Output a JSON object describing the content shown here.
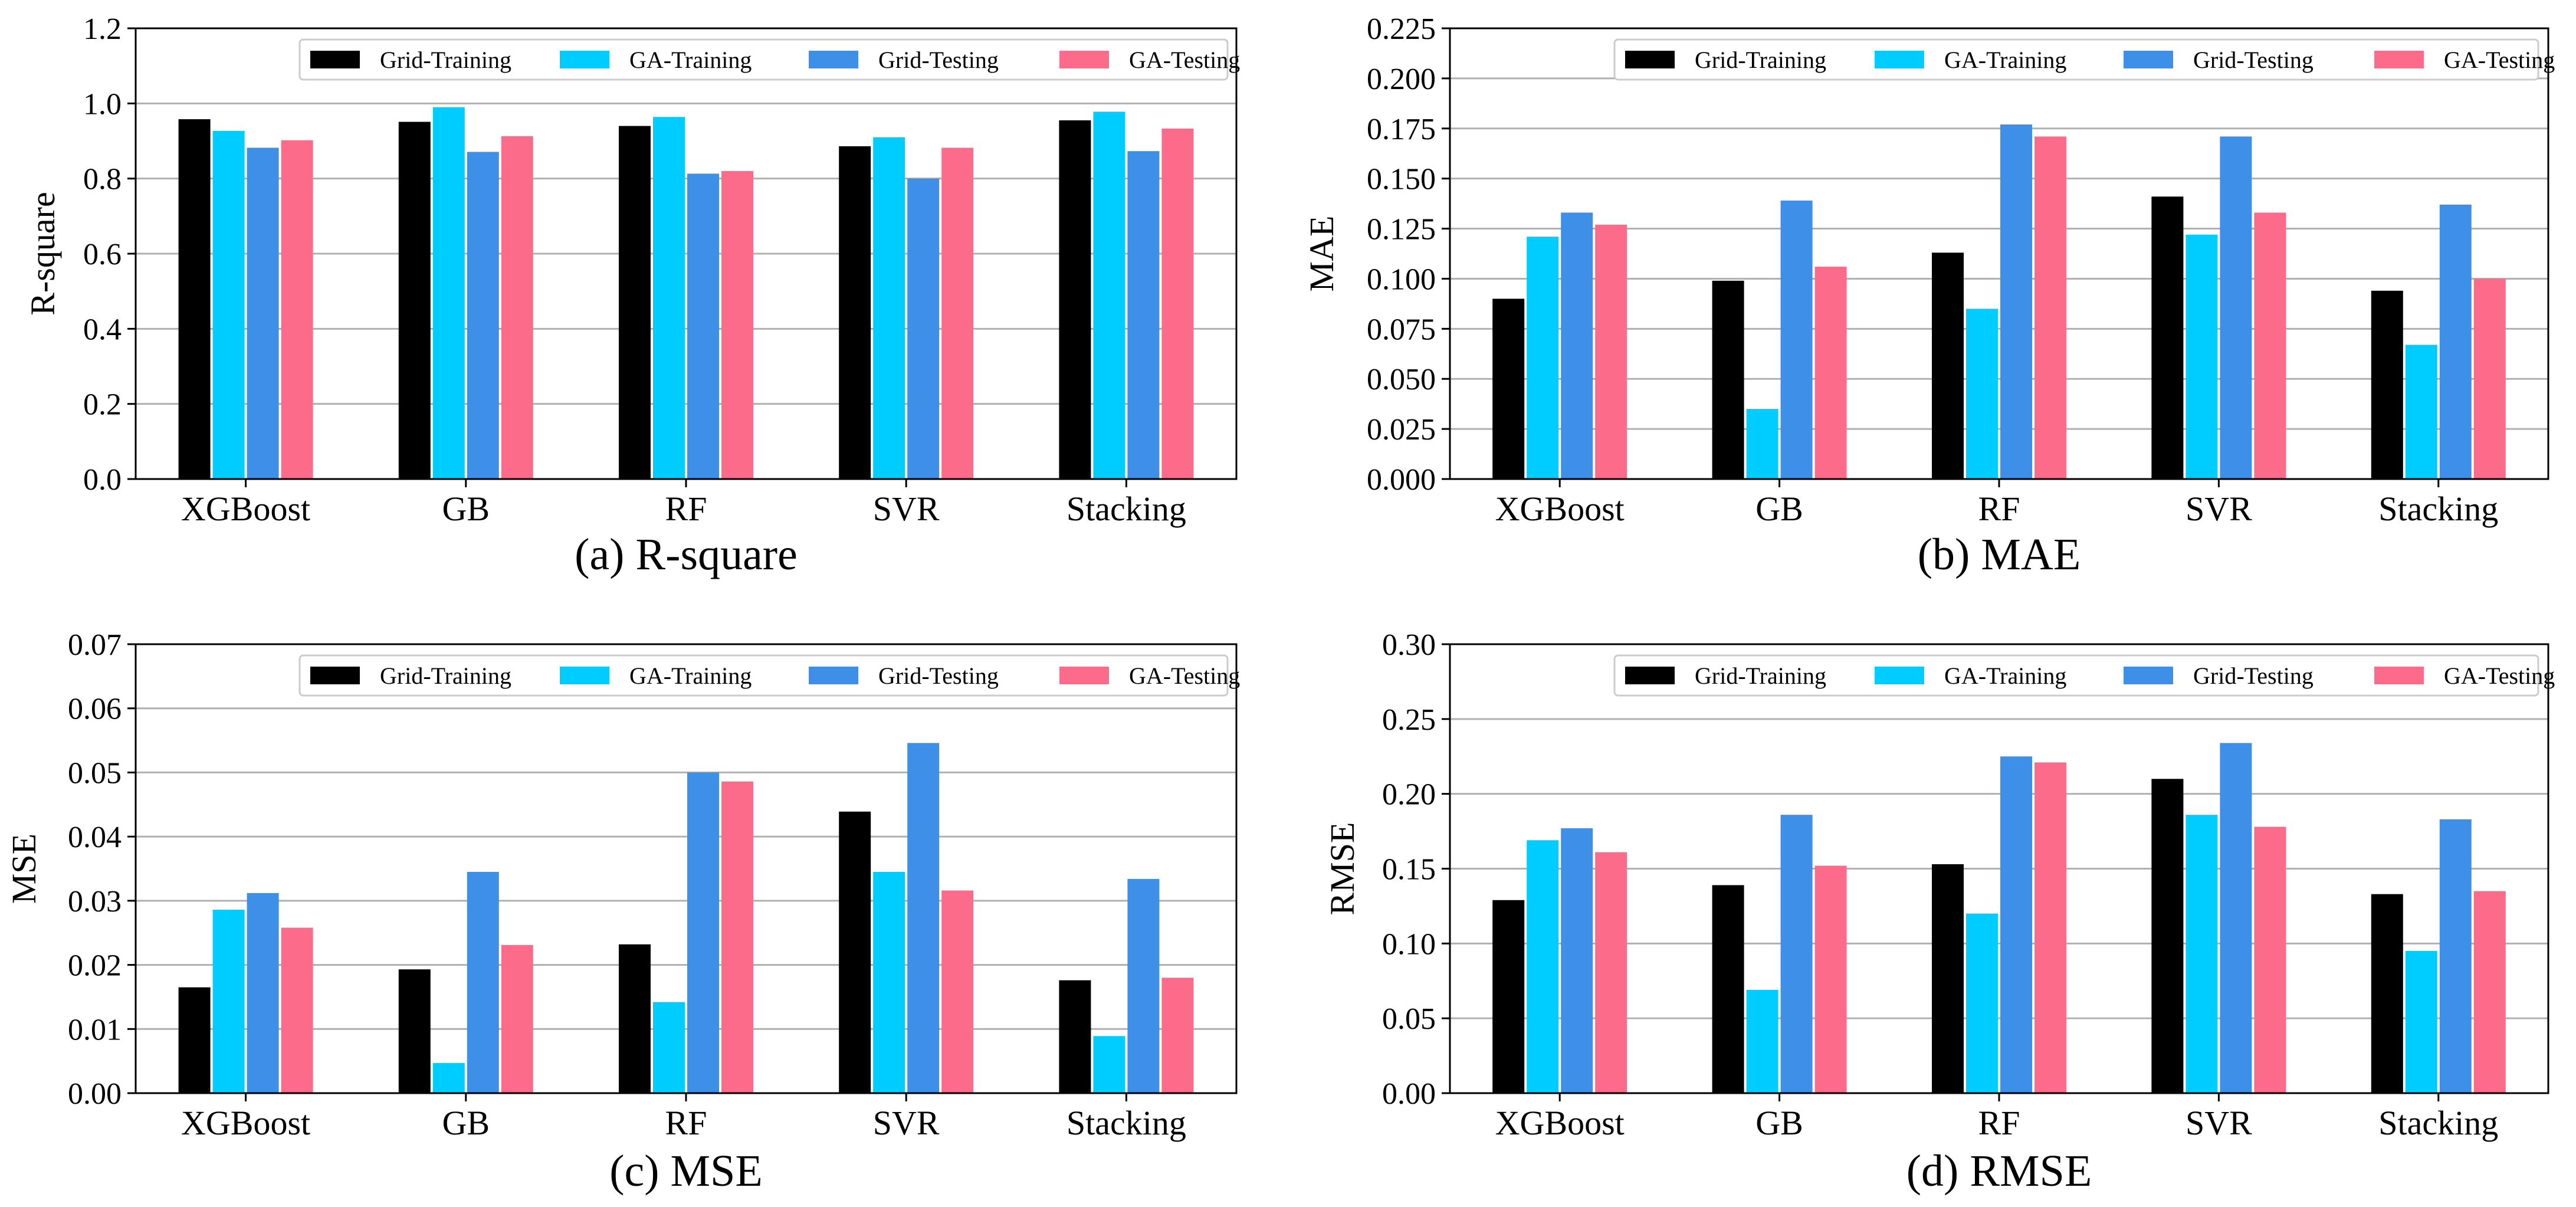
{
  "figure": {
    "legend": [
      "Grid-Training",
      "GA-Training",
      "Grid-Testing",
      "GA-Testing"
    ],
    "colors": [
      "#000000",
      "#00cdff",
      "#3e8fe8",
      "#fd6b8a"
    ]
  },
  "chart_data": [
    {
      "type": "bar",
      "title": "(a) R-square",
      "ylabel": "R-square",
      "xlabel": "",
      "ylim": [
        0,
        1.2
      ],
      "yticks": [
        "0.0",
        "0.2",
        "0.4",
        "0.6",
        "0.8",
        "1.0",
        "1.2"
      ],
      "grid": true,
      "legend_position": "top-right",
      "categories": [
        "XGBoost",
        "GB",
        "RF",
        "SVR",
        "Stacking"
      ],
      "series": [
        {
          "name": "Grid-Training",
          "values": [
            0.958,
            0.951,
            0.94,
            0.886,
            0.955
          ]
        },
        {
          "name": "GA-Training",
          "values": [
            0.927,
            0.99,
            0.964,
            0.91,
            0.978
          ]
        },
        {
          "name": "Grid-Testing",
          "values": [
            0.882,
            0.871,
            0.813,
            0.8,
            0.873
          ]
        },
        {
          "name": "GA-Testing",
          "values": [
            0.902,
            0.913,
            0.82,
            0.882,
            0.933
          ]
        }
      ]
    },
    {
      "type": "bar",
      "title": "(b) MAE",
      "ylabel": "MAE",
      "xlabel": "",
      "ylim": [
        0,
        0.225
      ],
      "yticks": [
        "0.000",
        "0.025",
        "0.050",
        "0.075",
        "0.100",
        "0.125",
        "0.150",
        "0.175",
        "0.200",
        "0.225"
      ],
      "grid": true,
      "legend_position": "top-right",
      "categories": [
        "XGBoost",
        "GB",
        "RF",
        "SVR",
        "Stacking"
      ],
      "series": [
        {
          "name": "Grid-Training",
          "values": [
            0.09,
            0.099,
            0.113,
            0.141,
            0.094
          ]
        },
        {
          "name": "GA-Training",
          "values": [
            0.121,
            0.035,
            0.085,
            0.122,
            0.067
          ]
        },
        {
          "name": "Grid-Testing",
          "values": [
            0.133,
            0.139,
            0.177,
            0.171,
            0.137
          ]
        },
        {
          "name": "GA-Testing",
          "values": [
            0.127,
            0.106,
            0.171,
            0.133,
            0.1
          ]
        }
      ]
    },
    {
      "type": "bar",
      "title": "(c) MSE",
      "ylabel": "MSE",
      "xlabel": "",
      "ylim": [
        0,
        0.07
      ],
      "yticks": [
        "0.00",
        "0.01",
        "0.02",
        "0.03",
        "0.04",
        "0.05",
        "0.06",
        "0.07"
      ],
      "grid": true,
      "legend_position": "top-right",
      "categories": [
        "XGBoost",
        "GB",
        "RF",
        "SVR",
        "Stacking"
      ],
      "series": [
        {
          "name": "Grid-Training",
          "values": [
            0.0165,
            0.0193,
            0.0232,
            0.0439,
            0.0176
          ]
        },
        {
          "name": "GA-Training",
          "values": [
            0.0286,
            0.0047,
            0.0142,
            0.0345,
            0.0089
          ]
        },
        {
          "name": "Grid-Testing",
          "values": [
            0.0312,
            0.0345,
            0.05,
            0.0546,
            0.0334
          ]
        },
        {
          "name": "GA-Testing",
          "values": [
            0.0258,
            0.0231,
            0.0486,
            0.0316,
            0.018
          ]
        }
      ]
    },
    {
      "type": "bar",
      "title": "(d) RMSE",
      "ylabel": "RMSE",
      "xlabel": "",
      "ylim": [
        0,
        0.3
      ],
      "yticks": [
        "0.00",
        "0.05",
        "0.10",
        "0.15",
        "0.20",
        "0.25",
        "0.30"
      ],
      "grid": true,
      "legend_position": "top-right",
      "categories": [
        "XGBoost",
        "GB",
        "RF",
        "SVR",
        "Stacking"
      ],
      "series": [
        {
          "name": "Grid-Training",
          "values": [
            0.129,
            0.139,
            0.153,
            0.21,
            0.133
          ]
        },
        {
          "name": "GA-Training",
          "values": [
            0.169,
            0.069,
            0.12,
            0.186,
            0.095
          ]
        },
        {
          "name": "Grid-Testing",
          "values": [
            0.177,
            0.186,
            0.225,
            0.234,
            0.183
          ]
        },
        {
          "name": "GA-Testing",
          "values": [
            0.161,
            0.152,
            0.221,
            0.178,
            0.135
          ]
        }
      ]
    }
  ]
}
